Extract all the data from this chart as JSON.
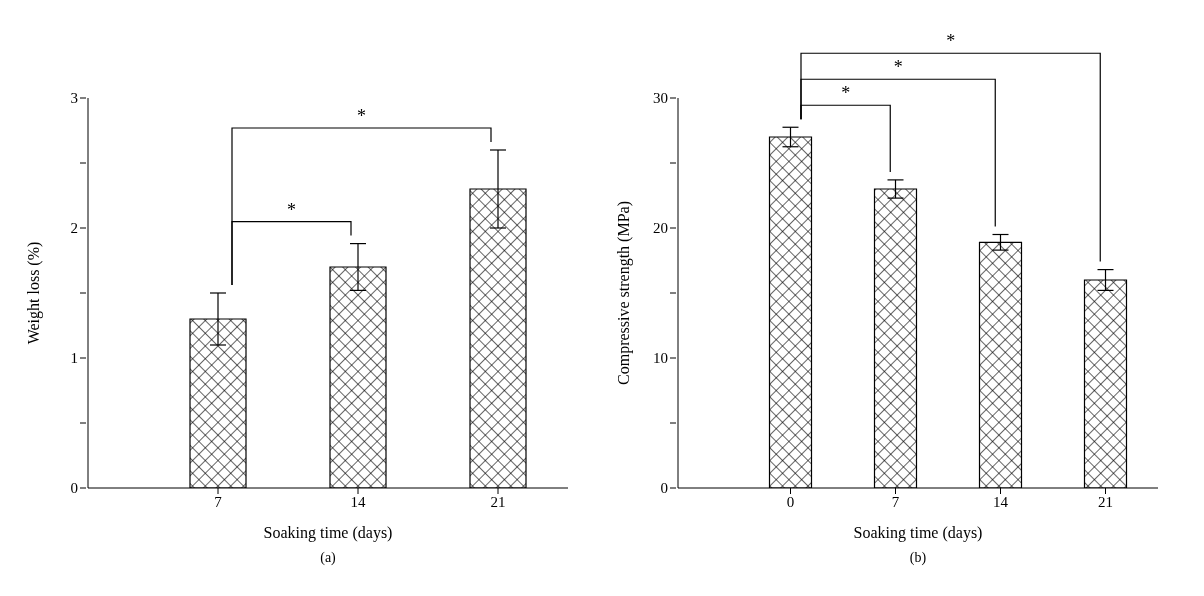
{
  "chart_data": [
    {
      "type": "bar",
      "xlabel": "Soaking time (days)",
      "ylabel": "Weight loss (%)",
      "categories": [
        "7",
        "14",
        "21"
      ],
      "values": [
        1.3,
        1.7,
        2.3
      ],
      "errors": [
        0.2,
        0.18,
        0.3
      ],
      "color": "#000000",
      "ylim": [
        0,
        3
      ],
      "yticks": [
        0,
        {
          "value": 0.5,
          "label": null
        },
        1,
        {
          "value": 1.5,
          "label": null
        },
        2,
        {
          "value": 2.5,
          "label": null
        },
        3
      ],
      "grid": false,
      "legend": false,
      "annotations": [
        "*",
        "*",
        "(a)"
      ]
    },
    {
      "type": "bar",
      "xlabel": "Soaking time (days)",
      "ylabel": "Compressive strength (MPa)",
      "categories": [
        "0",
        "7",
        "14",
        "21"
      ],
      "values": [
        27,
        23,
        18.9,
        16
      ],
      "errors": [
        0.75,
        0.7,
        0.6,
        0.8
      ],
      "color": "#000000",
      "ylim": [
        0,
        30
      ],
      "yticks": [
        0,
        {
          "value": 5,
          "label": null
        },
        10,
        {
          "value": 15,
          "label": null
        },
        20,
        {
          "value": 25,
          "label": null
        },
        30
      ],
      "grid": false,
      "legend": false,
      "annotations": [
        "*",
        "*",
        "*",
        "(b)"
      ]
    }
  ]
}
